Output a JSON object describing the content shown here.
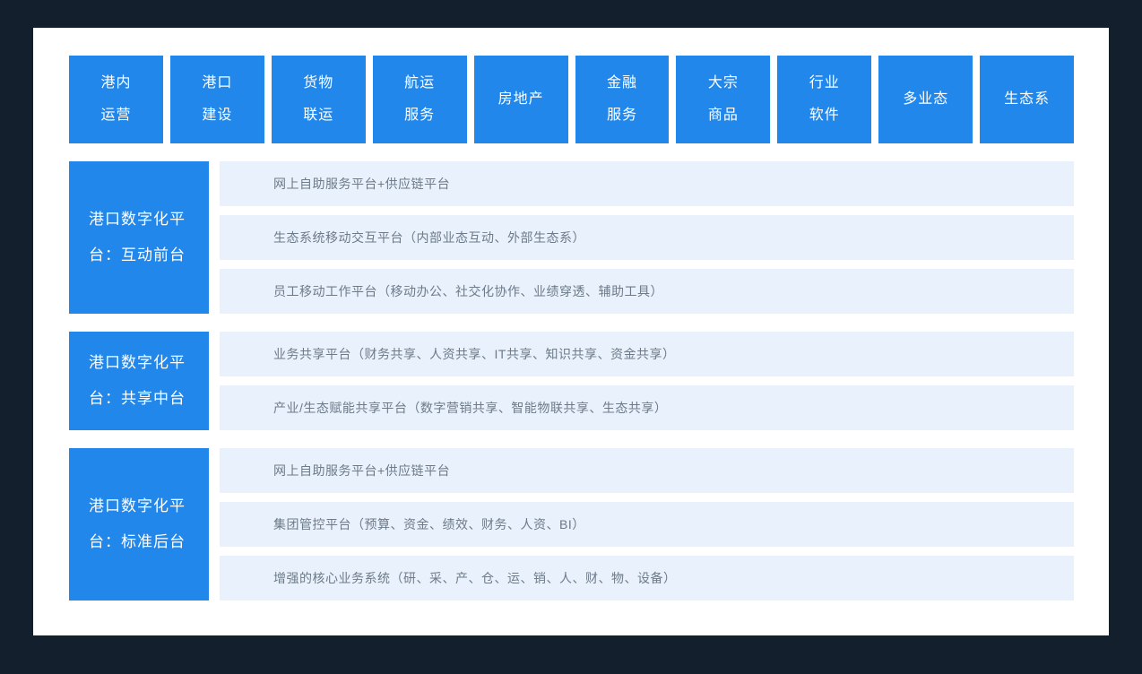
{
  "colors": {
    "accent_blue": "#2287ea",
    "row_background": "#e8f1fc",
    "frame_background": "#141f2d",
    "card_background": "#ffffff",
    "row_text": "#6d7a89"
  },
  "top_segments": {
    "items": [
      {
        "label": "港内运营",
        "lines": [
          "港内",
          "运营"
        ]
      },
      {
        "label": "港口建设",
        "lines": [
          "港口",
          "建设"
        ]
      },
      {
        "label": "货物联运",
        "lines": [
          "货物",
          "联运"
        ]
      },
      {
        "label": "航运服务",
        "lines": [
          "航运",
          "服务"
        ]
      },
      {
        "label": "房地产",
        "lines": [
          "房地产"
        ]
      },
      {
        "label": "金融服务",
        "lines": [
          "金融",
          "服务"
        ]
      },
      {
        "label": "大宗商品",
        "lines": [
          "大宗",
          "商品"
        ]
      },
      {
        "label": "行业软件",
        "lines": [
          "行业",
          "软件"
        ]
      },
      {
        "label": "多业态",
        "lines": [
          "多业态"
        ]
      },
      {
        "label": "生态系",
        "lines": [
          "生态系"
        ]
      }
    ]
  },
  "sections": [
    {
      "label": "港口数字化平台：互动前台",
      "label_lines": [
        "港口数字化平",
        "台：互动前台"
      ],
      "rows": [
        "网上自助服务平台+供应链平台",
        "生态系统移动交互平台（内部业态互动、外部生态系）",
        "员工移动工作平台（移动办公、社交化协作、业绩穿透、辅助工具）"
      ]
    },
    {
      "label": "港口数字化平台：共享中台",
      "label_lines": [
        "港口数字化平",
        "台：共享中台"
      ],
      "rows": [
        "业务共享平台（财务共享、人资共享、IT共享、知识共享、资金共享）",
        "产业/生态赋能共享平台（数字营销共享、智能物联共享、生态共享）"
      ]
    },
    {
      "label": "港口数字化平台：标准后台",
      "label_lines": [
        "港口数字化平",
        "台：标准后台"
      ],
      "rows": [
        "网上自助服务平台+供应链平台",
        "集团管控平台（预算、资金、绩效、财务、人资、BI）",
        "增强的核心业务系统（研、采、产、仓、运、销、人、财、物、设备）"
      ]
    }
  ]
}
